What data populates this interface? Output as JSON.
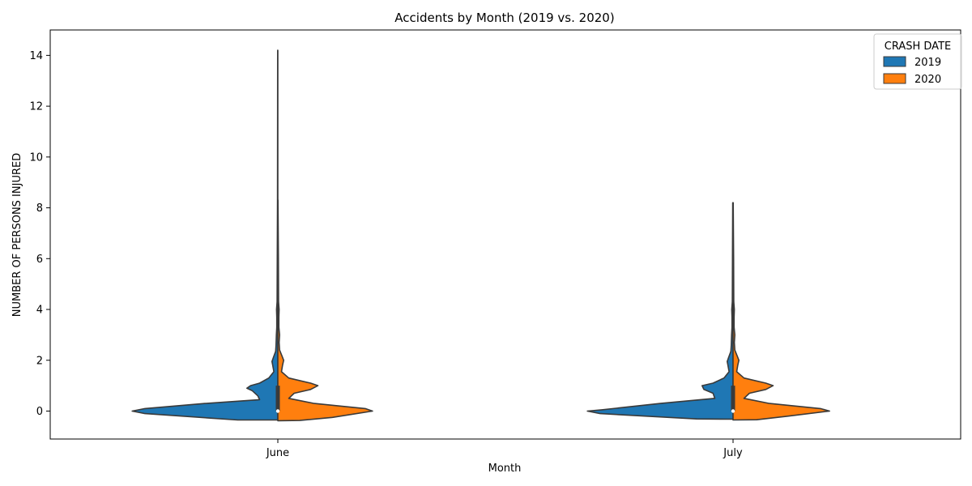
{
  "chart_data": {
    "type": "violin",
    "title": "Accidents by Month (2019 vs. 2020)",
    "xlabel": "Month",
    "ylabel": "NUMBER OF PERSONS INJURED",
    "categories": [
      "June",
      "July"
    ],
    "ylim": [
      -1.1,
      15.0
    ],
    "yticks": [
      0,
      2,
      4,
      6,
      8,
      10,
      12,
      14
    ],
    "split": true,
    "legend": {
      "title": "CRASH DATE",
      "position": "top-right"
    },
    "series": [
      {
        "name": "2019",
        "color": "#1f77b4"
      },
      {
        "name": "2020",
        "color": "#ff7f0e"
      }
    ],
    "violins": [
      {
        "category": "June",
        "series": "2019",
        "max": 14.2,
        "profile": [
          [
            -0.35,
            0.22
          ],
          [
            -0.1,
            0.73
          ],
          [
            0,
            0.8
          ],
          [
            0.1,
            0.73
          ],
          [
            0.3,
            0.4
          ],
          [
            0.45,
            0.1
          ],
          [
            0.6,
            0.11
          ],
          [
            0.8,
            0.14
          ],
          [
            0.9,
            0.17
          ],
          [
            1.0,
            0.15
          ],
          [
            1.1,
            0.1
          ],
          [
            1.3,
            0.05
          ],
          [
            1.55,
            0.022
          ],
          [
            1.8,
            0.028
          ],
          [
            1.95,
            0.032
          ],
          [
            2.1,
            0.025
          ],
          [
            2.35,
            0.012
          ],
          [
            2.6,
            0.01
          ],
          [
            3.0,
            0.008
          ],
          [
            3.3,
            0.006
          ],
          [
            3.7,
            0.006
          ],
          [
            4.0,
            0.007
          ],
          [
            4.3,
            0.004
          ],
          [
            6.0,
            0.003
          ],
          [
            8.3,
            0.002
          ],
          [
            14.2,
            0.001
          ]
        ]
      },
      {
        "category": "June",
        "series": "2020",
        "max": 8.3,
        "profile": [
          [
            -0.38,
            0.0
          ],
          [
            -0.37,
            0.12
          ],
          [
            -0.25,
            0.3
          ],
          [
            0,
            0.52
          ],
          [
            0.1,
            0.48
          ],
          [
            0.3,
            0.2
          ],
          [
            0.5,
            0.06
          ],
          [
            0.7,
            0.09
          ],
          [
            0.85,
            0.18
          ],
          [
            1.0,
            0.22
          ],
          [
            1.1,
            0.18
          ],
          [
            1.3,
            0.06
          ],
          [
            1.55,
            0.02
          ],
          [
            1.8,
            0.026
          ],
          [
            2.0,
            0.032
          ],
          [
            2.15,
            0.024
          ],
          [
            2.4,
            0.01
          ],
          [
            2.7,
            0.007
          ],
          [
            3.0,
            0.01
          ],
          [
            3.3,
            0.006
          ],
          [
            3.7,
            0.006
          ],
          [
            4.0,
            0.007
          ],
          [
            4.3,
            0.004
          ],
          [
            6.0,
            0.003
          ],
          [
            8.3,
            0.001
          ]
        ]
      },
      {
        "category": "July",
        "series": "2019",
        "max": 8.2,
        "profile": [
          [
            -0.32,
            0.0
          ],
          [
            -0.31,
            0.2
          ],
          [
            -0.1,
            0.73
          ],
          [
            0,
            0.8
          ],
          [
            0.05,
            0.72
          ],
          [
            0.3,
            0.4
          ],
          [
            0.5,
            0.1
          ],
          [
            0.7,
            0.11
          ],
          [
            0.85,
            0.16
          ],
          [
            1.0,
            0.17
          ],
          [
            1.1,
            0.11
          ],
          [
            1.3,
            0.05
          ],
          [
            1.55,
            0.022
          ],
          [
            1.8,
            0.028
          ],
          [
            1.95,
            0.032
          ],
          [
            2.1,
            0.025
          ],
          [
            2.35,
            0.012
          ],
          [
            2.6,
            0.01
          ],
          [
            3.0,
            0.008
          ],
          [
            3.3,
            0.006
          ],
          [
            3.7,
            0.006
          ],
          [
            4.0,
            0.007
          ],
          [
            4.3,
            0.004
          ],
          [
            6.0,
            0.003
          ],
          [
            8.2,
            0.002
          ]
        ]
      },
      {
        "category": "July",
        "series": "2020",
        "max": 8.2,
        "profile": [
          [
            -0.35,
            0.0
          ],
          [
            -0.34,
            0.13
          ],
          [
            -0.2,
            0.3
          ],
          [
            0,
            0.53
          ],
          [
            0.1,
            0.48
          ],
          [
            0.3,
            0.2
          ],
          [
            0.5,
            0.06
          ],
          [
            0.7,
            0.09
          ],
          [
            0.85,
            0.18
          ],
          [
            1.0,
            0.22
          ],
          [
            1.1,
            0.18
          ],
          [
            1.3,
            0.06
          ],
          [
            1.55,
            0.02
          ],
          [
            1.8,
            0.026
          ],
          [
            2.0,
            0.032
          ],
          [
            2.15,
            0.024
          ],
          [
            2.4,
            0.01
          ],
          [
            2.7,
            0.007
          ],
          [
            3.0,
            0.01
          ],
          [
            3.3,
            0.006
          ],
          [
            3.7,
            0.006
          ],
          [
            4.0,
            0.007
          ],
          [
            4.3,
            0.004
          ],
          [
            6.0,
            0.003
          ],
          [
            8.2,
            0.001
          ]
        ]
      }
    ],
    "inner_box": {
      "q1": 0,
      "median": 0,
      "q3": 1
    }
  }
}
